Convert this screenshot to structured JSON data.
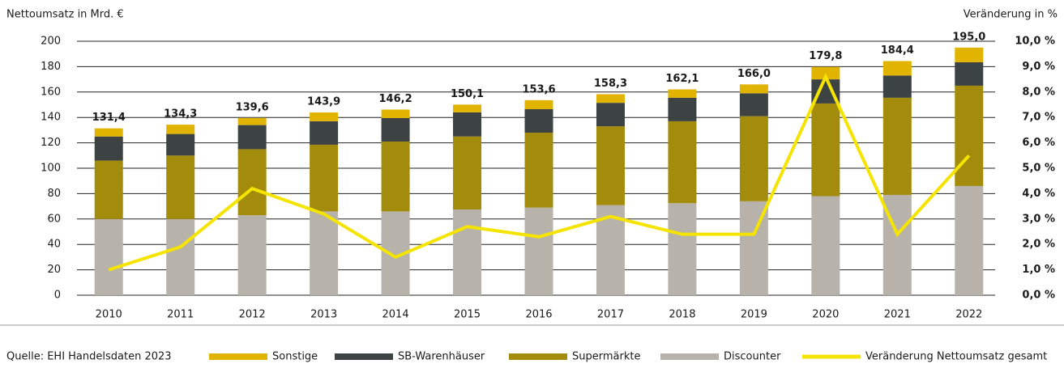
{
  "chart_data": {
    "type": "bar",
    "y_label": "Nettoumsatz in Mrd. €",
    "y2_label": "Veränderung in %",
    "source": "Quelle: EHI Handelsdaten 2023",
    "categories": [
      "2010",
      "2011",
      "2012",
      "2013",
      "2014",
      "2015",
      "2016",
      "2017",
      "2018",
      "2019",
      "2020",
      "2021",
      "2022"
    ],
    "series": [
      {
        "name": "Sonstige",
        "type": "bar",
        "color": "#e0b400",
        "values": [
          6.4,
          7.3,
          5.6,
          6.9,
          6.7,
          6.1,
          7.1,
          6.8,
          6.6,
          7.0,
          9.8,
          11.4,
          11.5
        ]
      },
      {
        "name": "SB-Warenhäuser",
        "type": "bar",
        "color": "#3d4343",
        "values": [
          19,
          17,
          19,
          18.5,
          18.5,
          19,
          18.5,
          18.5,
          18.5,
          18,
          19,
          17.5,
          18.5
        ]
      },
      {
        "name": "Supermärkte",
        "type": "bar",
        "color": "#a38b0c",
        "values": [
          46,
          50,
          52,
          52.5,
          55,
          57.5,
          59,
          62,
          64.5,
          67,
          73,
          76.5,
          79
        ]
      },
      {
        "name": "Discounter",
        "type": "bar",
        "color": "#b7b3ab",
        "values": [
          60,
          60,
          63,
          66,
          66,
          67.5,
          69,
          71,
          72.5,
          74,
          78,
          79,
          86
        ]
      },
      {
        "name": "Veränderung Nettoumsatz gesamt",
        "type": "line",
        "axis": "y2",
        "color": "#f5e400",
        "values": [
          1.0,
          1.9,
          4.2,
          3.2,
          1.5,
          2.7,
          2.3,
          3.1,
          2.4,
          2.4,
          8.6,
          2.4,
          5.5
        ]
      }
    ],
    "totals": [
      131.4,
      134.3,
      139.6,
      143.9,
      146.2,
      150.1,
      153.6,
      158.3,
      162.1,
      166.0,
      179.8,
      184.4,
      195.0
    ],
    "total_labels": [
      "131,4",
      "134,3",
      "139,6",
      "143,9",
      "146,2",
      "150,1",
      "153,6",
      "158,3",
      "162,1",
      "166,0",
      "179,8",
      "184,4",
      "195,0"
    ],
    "ylim": [
      0,
      200
    ],
    "yticks": [
      0,
      20,
      40,
      60,
      80,
      100,
      120,
      140,
      160,
      180,
      200
    ],
    "y2lim": [
      0,
      10
    ],
    "y2ticks": [
      {
        "value": 0,
        "label": "0,0 %"
      },
      {
        "value": 1,
        "label": "1,0 %"
      },
      {
        "value": 2,
        "label": "2,0 %"
      },
      {
        "value": 3,
        "label": "3,0 %"
      },
      {
        "value": 4,
        "label": "4,0 %"
      },
      {
        "value": 5,
        "label": "5,0 %"
      },
      {
        "value": 6,
        "label": "6,0 %"
      },
      {
        "value": 7,
        "label": "7,0 %"
      },
      {
        "value": 8,
        "label": "8,0 %"
      },
      {
        "value": 9,
        "label": "9,0 %"
      },
      {
        "value": 10,
        "label": "10,0 %"
      }
    ],
    "grid": true,
    "legend": "bottom"
  }
}
